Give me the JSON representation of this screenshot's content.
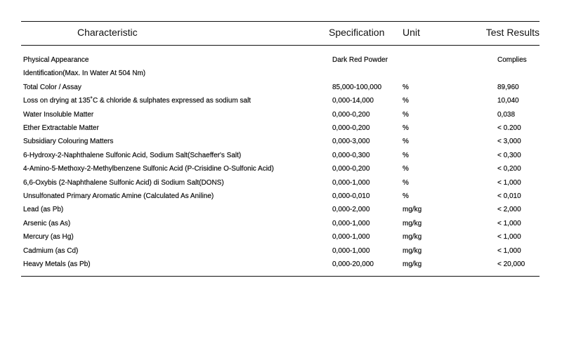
{
  "headers": {
    "characteristic": "Characteristic",
    "specification": "Specification",
    "unit": "Unit",
    "results": "Test Results"
  },
  "rows": [
    {
      "characteristic": "Physical Appearance",
      "specification": "Dark Red Powder",
      "unit": "",
      "result": "Complies"
    },
    {
      "characteristic": "Identification(Max. In Water At 504 Nm)",
      "specification": "",
      "unit": "",
      "result": ""
    },
    {
      "characteristic": "Total Color / Assay",
      "specification": "85,000-100,000",
      "unit": "%",
      "result": "89,960"
    },
    {
      "characteristic": "Loss on drying at 135˚C & chloride & sulphates expressed as sodium salt",
      "specification": "0,000-14,000",
      "unit": "%",
      "result": "10,040"
    },
    {
      "characteristic": "Water Insoluble Matter",
      "specification": "0,000-0,200",
      "unit": "%",
      "result": "0,038"
    },
    {
      "characteristic": "Ether Extractable Matter",
      "specification": "0,000-0,200",
      "unit": "%",
      "result": "< 0.200"
    },
    {
      "characteristic": "Subsidiary Colouring Matters",
      "specification": "0,000-3,000",
      "unit": "%",
      "result": "< 3,000"
    },
    {
      "characteristic": "6-Hydroxy-2-Naphthalene Sulfonic Acid, Sodium Salt(Schaeffer's Salt)",
      "specification": "0,000-0,300",
      "unit": "%",
      "result": "< 0,300"
    },
    {
      "characteristic": "4-Amino-5-Methoxy-2-Methylbenzene Sulfonic Acid (P-Crisidine O-Sulfonic Acid)",
      "specification": "0,000-0,200",
      "unit": "%",
      "result": "< 0,200"
    },
    {
      "characteristic": "6,6-Oxybis (2-Naphthalene Sulfonic Acid) di Sodium Salt(DONS)",
      "specification": "0,000-1,000",
      "unit": "%",
      "result": "< 1,000"
    },
    {
      "characteristic": "Unsulfonated Primary Aromatic Amine (Calculated As Aniline)",
      "specification": "0,000-0,010",
      "unit": "%",
      "result": "< 0,010"
    },
    {
      "characteristic": "Lead (as Pb)",
      "specification": "0,000-2,000",
      "unit": "mg/kg",
      "result": "< 2,000"
    },
    {
      "characteristic": "Arsenic (as As)",
      "specification": "0,000-1,000",
      "unit": "mg/kg",
      "result": "< 1,000"
    },
    {
      "characteristic": "Mercury (as Hg)",
      "specification": "0,000-1,000",
      "unit": "mg/kg",
      "result": "< 1,000"
    },
    {
      "characteristic": "Cadmium (as Cd)",
      "specification": "0,000-1,000",
      "unit": "mg/kg",
      "result": "< 1,000"
    },
    {
      "characteristic": "Heavy Metals (as Pb)",
      "specification": "0,000-20,000",
      "unit": "mg/kg",
      "result": "< 20,000"
    }
  ]
}
